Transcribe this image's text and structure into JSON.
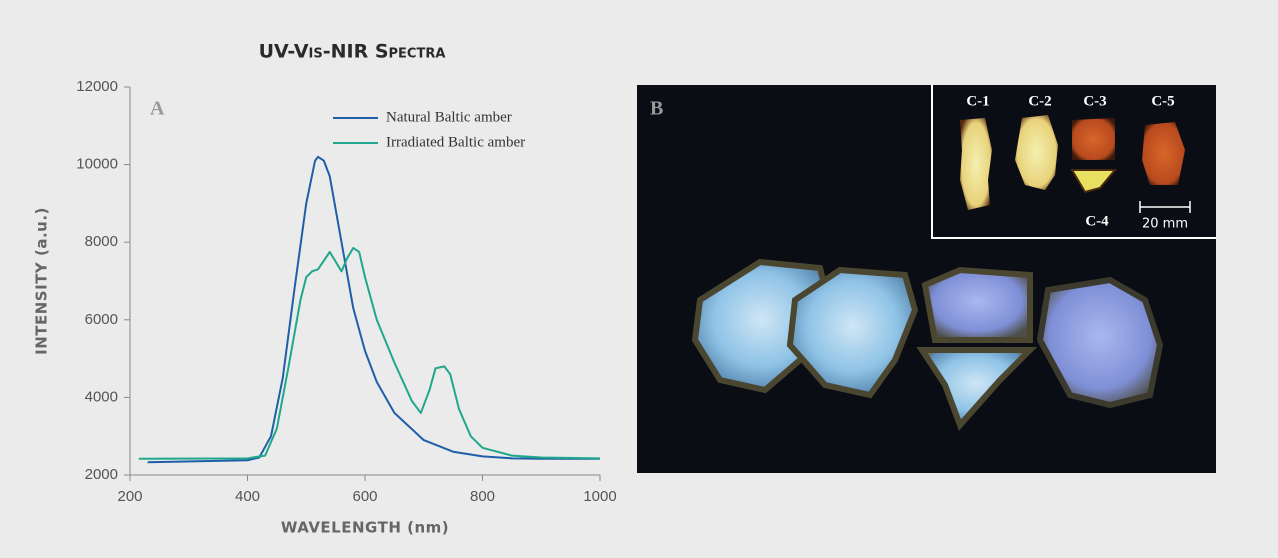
{
  "chart_data": {
    "type": "line",
    "title": "UV-Vis-NIR Spectra",
    "panel_label": "A",
    "x_label": "WAVELENGTH (nm)",
    "y_label": "INTENSITY (a.u.)",
    "xlim": [
      200,
      1000
    ],
    "xticks": [
      200,
      400,
      600,
      800,
      1000
    ],
    "ylim": [
      2000,
      12000
    ],
    "yticks": [
      2000,
      4000,
      6000,
      8000,
      10000,
      12000
    ],
    "grid": false,
    "legend": "top-right",
    "series": [
      {
        "name": "Natural Baltic amber",
        "color": "#1f5ea8",
        "x": [
          230,
          400,
          420,
          440,
          460,
          480,
          500,
          515,
          520,
          530,
          540,
          560,
          580,
          600,
          620,
          650,
          700,
          750,
          800,
          850,
          900,
          1000
        ],
        "values": [
          2330,
          2380,
          2450,
          3000,
          4500,
          6800,
          9000,
          10100,
          10200,
          10100,
          9700,
          8000,
          6300,
          5200,
          4400,
          3600,
          2900,
          2600,
          2480,
          2430,
          2420,
          2420
        ]
      },
      {
        "name": "Irradiated Baltic amber",
        "color": "#1fa88b",
        "x": [
          215,
          400,
          430,
          450,
          470,
          490,
          500,
          510,
          520,
          540,
          550,
          560,
          570,
          580,
          590,
          600,
          620,
          650,
          680,
          695,
          710,
          720,
          735,
          745,
          760,
          780,
          800,
          850,
          900,
          1000
        ],
        "values": [
          2420,
          2430,
          2500,
          3200,
          4800,
          6500,
          7100,
          7250,
          7300,
          7750,
          7500,
          7250,
          7600,
          7850,
          7750,
          7100,
          6000,
          4900,
          3900,
          3600,
          4200,
          4750,
          4800,
          4600,
          3700,
          3000,
          2700,
          2500,
          2450,
          2430
        ]
      }
    ]
  },
  "photo": {
    "panel_label": "B",
    "samples": [
      "C-1",
      "C-2",
      "C-3",
      "C-5",
      "C-4"
    ],
    "scale_bar": "20 mm"
  }
}
